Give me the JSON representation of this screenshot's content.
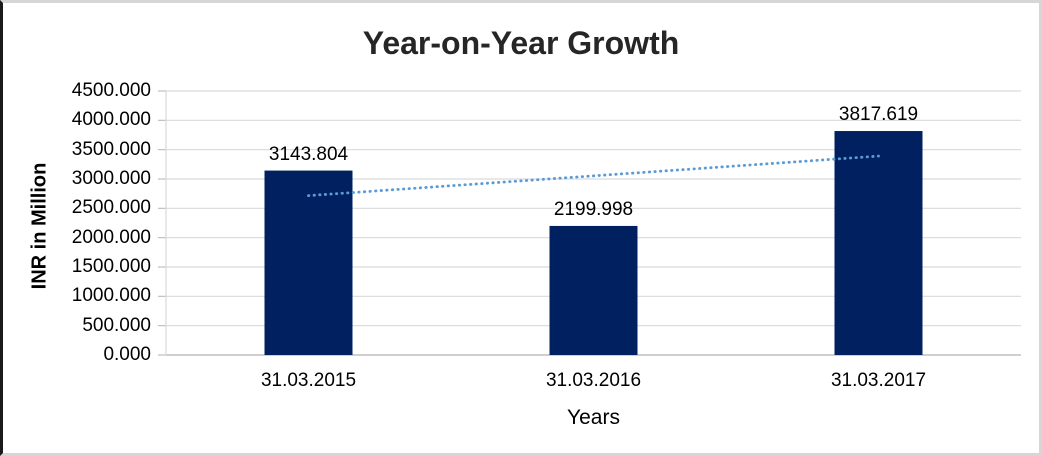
{
  "chart_data": {
    "type": "bar",
    "title": "Year-on-Year Growth",
    "xlabel": "Years",
    "ylabel": "INR in Million",
    "categories": [
      "31.03.2015",
      "31.03.2016",
      "31.03.2017"
    ],
    "values": [
      3143.804,
      2199.998,
      3817.619
    ],
    "data_labels": [
      "3143.804",
      "2199.998",
      "3817.619"
    ],
    "ylim": [
      0,
      4500
    ],
    "y_tick_step": 500,
    "y_tick_decimals": 3,
    "grid": "horizontal",
    "legend": "none",
    "trendline": {
      "type": "linear",
      "style": "dotted"
    },
    "colors": {
      "bar": "#002060",
      "trendline": "#5b9bd5",
      "gridline": "#d9d9d9",
      "axis_line": "#bfbfbf",
      "text": "#000000",
      "title_text": "#262626"
    }
  }
}
